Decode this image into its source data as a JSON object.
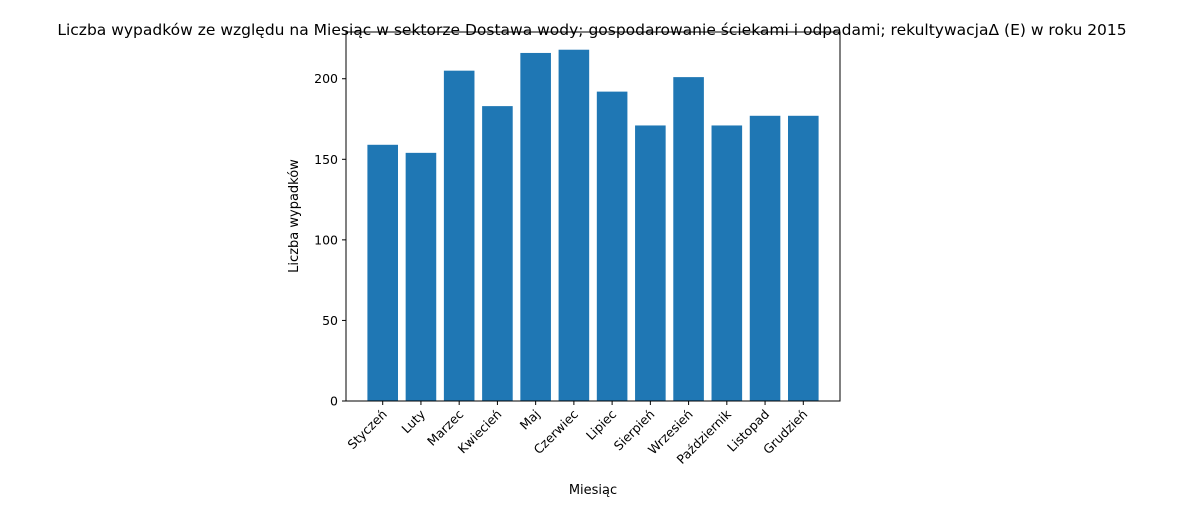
{
  "chart_data": {
    "type": "bar",
    "title": "Liczba wypadków ze względu na Miesiąc w sektorze Dostawa wody; gospodarowanie ściekami i odpadami;  rekultywacjaΔ  (E) w roku 2015",
    "xlabel": "Miesiąc",
    "ylabel": "Liczba wypadków",
    "categories": [
      "Styczeń",
      "Luty",
      "Marzec",
      "Kwiecień",
      "Maj",
      "Czerwiec",
      "Lipiec",
      "Sierpień",
      "Wrzesień",
      "Październik",
      "Listopad",
      "Grudzień"
    ],
    "values": [
      159,
      154,
      205,
      183,
      216,
      218,
      192,
      171,
      201,
      171,
      177,
      177
    ],
    "ylim": [
      0,
      229
    ],
    "yticks": [
      0,
      50,
      100,
      150,
      200
    ],
    "grid": false,
    "legend": "none",
    "bar_color": "#1f77b4"
  }
}
